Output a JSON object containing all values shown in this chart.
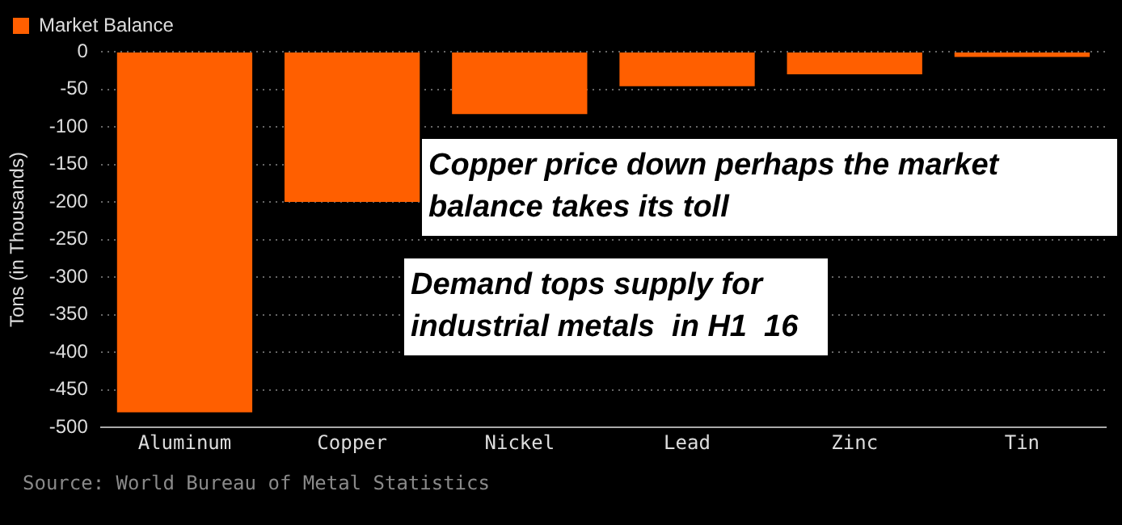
{
  "chart_data": {
    "type": "bar",
    "categories": [
      "Aluminum",
      "Copper",
      "Nickel",
      "Lead",
      "Zinc",
      "Tin"
    ],
    "series": [
      {
        "name": "Market Balance",
        "color": "#ff5f00",
        "values": [
          -480,
          -200,
          -83,
          -46,
          -30,
          -7
        ]
      }
    ],
    "ylabel": "Tons (in Thousands)",
    "ylim": [
      -500,
      0
    ],
    "yticks": [
      -500,
      -450,
      -400,
      -350,
      -300,
      -250,
      -200,
      -150,
      -100,
      -50,
      0
    ],
    "grid": "y",
    "legend": "top left",
    "annotations": [
      "Copper price down perhaps the market balance takes its toll",
      "Demand tops supply for industrial metals  in H1  16",
      "Source: World Bureau of Metal Statistics"
    ]
  }
}
